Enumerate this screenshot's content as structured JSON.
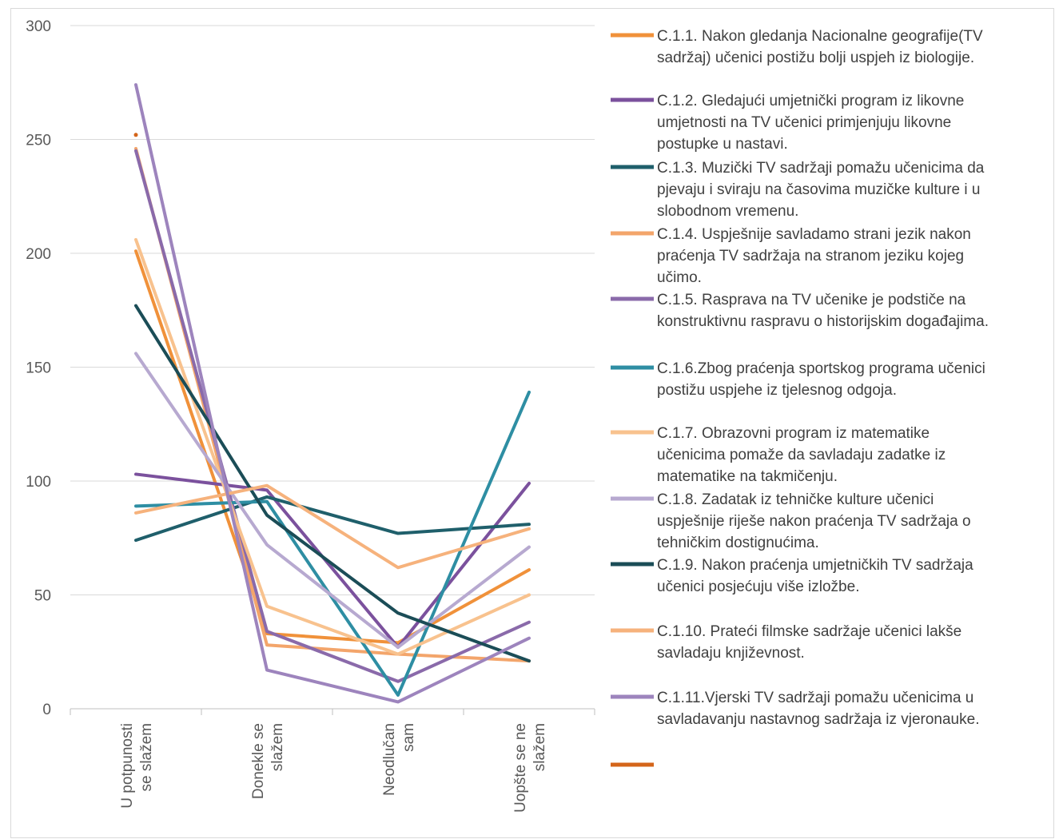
{
  "chart_data": {
    "type": "line",
    "categories": [
      "U potpunosti se slažem",
      "Donekle se slažem",
      "Neodlučan sam",
      "Uopšte se ne slažem"
    ],
    "category_label_lines": [
      [
        "U potpunosti",
        "se slažem"
      ],
      [
        "Donekle se",
        "slažem"
      ],
      [
        "Neodlučan",
        "sam"
      ],
      [
        "Uopšte se ne",
        "slažem"
      ]
    ],
    "ylim": [
      0,
      300
    ],
    "yticks": [
      0,
      50,
      100,
      150,
      200,
      250,
      300
    ],
    "grid": true,
    "legend_position": "right",
    "series": [
      {
        "name": "C.1.1. Nakon gledanja Nacionalne geografije(TV sadržaj) učenici postižu bolji uspjeh iz biologije.",
        "lines": [
          "C.1.1. Nakon gledanja Nacionalne geografije(TV",
          "sadržaj) učenici postižu bolji uspjeh iz biologije."
        ],
        "color": "#f0913a",
        "values": [
          201,
          33,
          29,
          61
        ]
      },
      {
        "name": "C.1.2. Gledajući umjetnički program iz likovne umjetnosti na TV učenici primjenjuju likovne postupke u nastavi.",
        "lines": [
          "C.1.2. Gledajući umjetnički program iz likovne",
          "umjetnosti na TV učenici primjenjuju likovne",
          "postupke u nastavi."
        ],
        "color": "#7b519d",
        "values": [
          103,
          96,
          27,
          99
        ]
      },
      {
        "name": "C.1.3. Muzički TV sadržaji pomažu učenicima da pjevaju i sviraju na časovima muzičke kulture i u slobodnom vremenu.",
        "lines": [
          "C.1.3. Muzički TV sadržaji pomažu učenicima da",
          "pjevaju i sviraju na časovima muzičke kulture i u",
          "slobodnom vremenu."
        ],
        "color": "#1f5f6b",
        "values": [
          74,
          93,
          77,
          81
        ]
      },
      {
        "name": "C.1.4. Uspješnije savladamo strani jezik nakon praćenja TV sadržaja na stranom jeziku kojeg učimo.",
        "lines": [
          "C.1.4. Uspješnije savladamo strani jezik nakon",
          "praćenja TV sadržaja na stranom jeziku kojeg",
          "učimo."
        ],
        "color": "#f3a56b",
        "values": [
          246,
          28,
          24,
          21
        ]
      },
      {
        "name": "C.1.5. Rasprava na TV učenike je podstiče na konstruktivnu raspravu o historijskim događajima.",
        "lines": [
          "C.1.5. Rasprava na TV učenike je podstiče na",
          "konstruktivnu raspravu o historijskim događajima."
        ],
        "color": "#8a6aaa",
        "values": [
          245,
          34,
          12,
          38
        ]
      },
      {
        "name": "C.1.6.Zbog praćenja sportskog programa učenici postižu uspjehe iz tjelesnog odgoja.",
        "lines": [
          "C.1.6.Zbog praćenja sportskog programa učenici",
          "postižu uspjehe iz tjelesnog odgoja."
        ],
        "color": "#2e8ea3",
        "values": [
          89,
          91,
          6,
          139
        ]
      },
      {
        "name": "C.1.7. Obrazovni program iz matematike učenicima pomaže da savladaju zadatke iz matematike na takmičenju.",
        "lines": [
          "C.1.7. Obrazovni program iz matematike",
          "učenicima pomaže da savladaju zadatke iz",
          "matematike na takmičenju."
        ],
        "color": "#f8c28e",
        "values": [
          206,
          45,
          24,
          50
        ]
      },
      {
        "name": "C.1.8. Zadatak iz tehničke kulture učenici uspješnije riješe nakon praćenja TV sadržaja o tehničkim dostignućima.",
        "lines": [
          "C.1.8. Zadatak iz tehničke kulture učenici",
          "uspješnije riješe nakon praćenja TV sadržaja o",
          "tehničkim dostignućima."
        ],
        "color": "#b7a9d0",
        "values": [
          156,
          72,
          27,
          71
        ]
      },
      {
        "name": "C.1.9. Nakon praćenja umjetničkih TV sadržaja učenici posjećuju više izložbe.",
        "lines": [
          "C.1.9. Nakon praćenja umjetničkih TV sadržaja",
          "učenici posjećuju više izložbe."
        ],
        "color": "#1b4d57",
        "values": [
          177,
          85,
          42,
          21
        ]
      },
      {
        "name": "C.1.10. Prateći filmske sadržaje učenici lakše savladaju književnost.",
        "lines": [
          "C.1.10. Prateći filmske sadržaje učenici lakše",
          "savladaju književnost."
        ],
        "color": "#f6b27c",
        "values": [
          86,
          98,
          62,
          79
        ]
      },
      {
        "name": "C.1.11.Vjerski TV sadržaji pomažu učenicima u savladavanju nastavnog sadržaja iz vjeronauke.",
        "lines": [
          " C.1.11.Vjerski TV sadržaji pomažu učenicima u",
          "savladavanju nastavnog sadržaja iz vjeronauke."
        ],
        "color": "#9d84bd",
        "values": [
          274,
          17,
          3,
          31
        ]
      },
      {
        "name": "",
        "lines": [],
        "color": "#d4651a",
        "values": [
          252,
          null,
          null,
          null
        ]
      }
    ]
  }
}
